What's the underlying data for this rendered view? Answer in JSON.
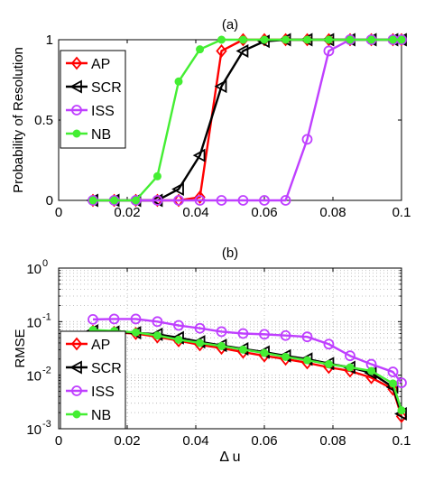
{
  "chart_data": [
    {
      "type": "line",
      "title": "(a)",
      "xlabel": "",
      "ylabel": "Probability of Resolution",
      "xlim": [
        0,
        0.1
      ],
      "ylim": [
        0,
        1
      ],
      "yscale": "linear",
      "grid": false,
      "legend": "left",
      "x": [
        0.01,
        0.0162,
        0.0225,
        0.0288,
        0.035,
        0.0412,
        0.0475,
        0.0538,
        0.06,
        0.0662,
        0.0725,
        0.0788,
        0.085,
        0.0912,
        0.0975,
        0.1
      ],
      "xticks": [
        0,
        0.02,
        0.04,
        0.06,
        0.08,
        0.1
      ],
      "xticklabels": [
        "0",
        "0.02",
        "0.04",
        "0.06",
        "0.08",
        "0.1"
      ],
      "yticks": [
        0,
        0.5,
        1
      ],
      "yticklabels": [
        "0",
        "0.5",
        "1"
      ],
      "series": [
        {
          "name": "AP",
          "color": "#ff0000",
          "marker": "diamond",
          "values": [
            0,
            0,
            0,
            0,
            0,
            0.02,
            0.93,
            1,
            1,
            1,
            1,
            1,
            1,
            1,
            1,
            1
          ]
        },
        {
          "name": "SCR",
          "color": "#000000",
          "marker": "triangle-left",
          "values": [
            0,
            0,
            0,
            0,
            0.07,
            0.28,
            0.71,
            0.93,
            0.99,
            1,
            1,
            1,
            1,
            1,
            1,
            1
          ]
        },
        {
          "name": "ISS",
          "color": "#bf3fff",
          "marker": "circle",
          "values": [
            0,
            0,
            0,
            0,
            0,
            0,
            0,
            0,
            0,
            0,
            0.38,
            0.93,
            1,
            1,
            1,
            1
          ]
        },
        {
          "name": "NB",
          "color": "#44ee33",
          "marker": "dot",
          "values": [
            0,
            0,
            0,
            0.15,
            0.74,
            0.94,
            1,
            1,
            1,
            1,
            1,
            1,
            1,
            1,
            1,
            1
          ]
        }
      ]
    },
    {
      "type": "line",
      "title": "(b)",
      "xlabel": "Δ u",
      "ylabel": "RMSE",
      "xlim": [
        0,
        0.1
      ],
      "ylim": [
        0.001,
        1
      ],
      "yscale": "log",
      "grid": true,
      "legend": "left",
      "x": [
        0.01,
        0.0162,
        0.0225,
        0.0288,
        0.035,
        0.0412,
        0.0475,
        0.0538,
        0.06,
        0.0662,
        0.0725,
        0.0788,
        0.085,
        0.0912,
        0.0975,
        0.1
      ],
      "xticks": [
        0,
        0.02,
        0.04,
        0.06,
        0.08,
        0.1
      ],
      "xticklabels": [
        "0",
        "0.02",
        "0.04",
        "0.06",
        "0.08",
        "0.1"
      ],
      "yticks": [
        0.001,
        0.01,
        0.1,
        1
      ],
      "yticklabels": [
        [
          "10",
          "-3"
        ],
        [
          "10",
          "-2"
        ],
        [
          "10",
          "-1"
        ],
        [
          "10",
          "0"
        ]
      ],
      "series": [
        {
          "name": "AP",
          "color": "#ff0000",
          "marker": "diamond",
          "values": [
            0.066,
            0.063,
            0.06,
            0.052,
            0.044,
            0.037,
            0.032,
            0.027,
            0.023,
            0.02,
            0.017,
            0.014,
            0.012,
            0.009,
            0.0055,
            0.0017
          ]
        },
        {
          "name": "SCR",
          "color": "#000000",
          "marker": "triangle-left",
          "values": [
            0.067,
            0.064,
            0.062,
            0.058,
            0.05,
            0.042,
            0.036,
            0.031,
            0.027,
            0.023,
            0.02,
            0.0165,
            0.014,
            0.011,
            0.006,
            0.0019
          ]
        },
        {
          "name": "ISS",
          "color": "#bf3fff",
          "marker": "circle",
          "values": [
            0.11,
            0.112,
            0.112,
            0.1,
            0.085,
            0.075,
            0.065,
            0.06,
            0.058,
            0.055,
            0.052,
            0.038,
            0.023,
            0.016,
            0.0115,
            0.0072
          ]
        },
        {
          "name": "NB",
          "color": "#44ee33",
          "marker": "dot",
          "values": [
            0.07,
            0.067,
            0.063,
            0.055,
            0.046,
            0.04,
            0.035,
            0.03,
            0.026,
            0.022,
            0.019,
            0.016,
            0.014,
            0.012,
            0.007,
            0.0022
          ]
        }
      ]
    }
  ]
}
